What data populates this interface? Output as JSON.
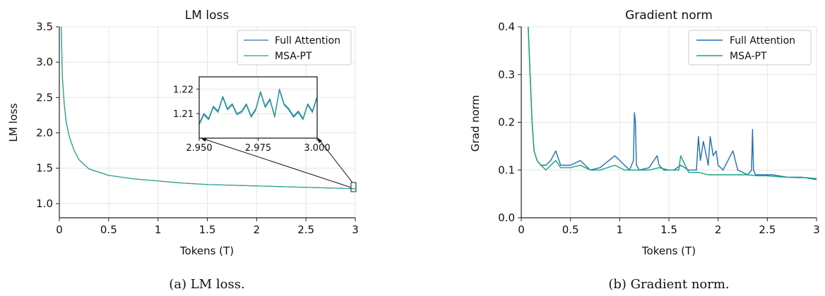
{
  "chart_data": [
    {
      "type": "line",
      "title": "LM loss",
      "xlabel": "Tokens (T)",
      "ylabel": "LM loss",
      "caption": "(a) LM loss.",
      "xlim": [
        0,
        3
      ],
      "ylim": [
        0.8,
        3.5
      ],
      "xticks": [
        0,
        0.5,
        1,
        1.5,
        2,
        2.5,
        3
      ],
      "xtick_labels": [
        "0",
        "0.5",
        "1",
        "1.5",
        "2",
        "2.5",
        "3"
      ],
      "yticks": [
        1.0,
        1.5,
        2.0,
        2.5,
        3.0,
        3.5
      ],
      "ytick_labels": [
        "1.0",
        "1.5",
        "2.0",
        "2.5",
        "3.0",
        "3.5"
      ],
      "grid": true,
      "legend": "top-right",
      "series": [
        {
          "name": "Full Attention",
          "color": "#1f77b4",
          "x": [
            0.02,
            0.03,
            0.05,
            0.07,
            0.1,
            0.15,
            0.2,
            0.3,
            0.5,
            0.75,
            1.0,
            1.25,
            1.5,
            2.0,
            2.5,
            3.0
          ],
          "y": [
            3.5,
            2.8,
            2.4,
            2.15,
            1.95,
            1.75,
            1.62,
            1.49,
            1.4,
            1.35,
            1.32,
            1.29,
            1.27,
            1.25,
            1.23,
            1.21
          ]
        },
        {
          "name": "MSA-PT",
          "color": "#2ca08c",
          "x": [
            0.02,
            0.03,
            0.05,
            0.07,
            0.1,
            0.15,
            0.2,
            0.3,
            0.5,
            0.75,
            1.0,
            1.25,
            1.5,
            2.0,
            2.5,
            3.0
          ],
          "y": [
            3.5,
            2.8,
            2.4,
            2.15,
            1.95,
            1.75,
            1.62,
            1.49,
            1.4,
            1.35,
            1.32,
            1.29,
            1.27,
            1.25,
            1.23,
            1.21
          ]
        }
      ],
      "inset": {
        "xlim": [
          2.95,
          3.0
        ],
        "ylim": [
          1.2,
          1.225
        ],
        "xticks": [
          2.95,
          2.975,
          3.0
        ],
        "xtick_labels": [
          "2.950",
          "2.975",
          "3.000"
        ],
        "yticks": [
          1.21,
          1.22
        ],
        "ytick_labels": [
          "1.21",
          "1.22"
        ],
        "series": [
          {
            "name": "Full Attention",
            "color": "#1f77b4",
            "x": [
              2.95,
              2.952,
              2.954,
              2.956,
              2.958,
              2.96,
              2.962,
              2.964,
              2.966,
              2.968,
              2.97,
              2.972,
              2.974,
              2.976,
              2.978,
              2.98,
              2.982,
              2.984,
              2.986,
              2.988,
              2.99,
              2.992,
              2.994,
              2.996,
              2.998,
              3.0
            ],
            "y": [
              1.206,
              1.21,
              1.208,
              1.213,
              1.211,
              1.217,
              1.212,
              1.214,
              1.21,
              1.211,
              1.214,
              1.209,
              1.212,
              1.219,
              1.213,
              1.216,
              1.209,
              1.22,
              1.214,
              1.212,
              1.209,
              1.211,
              1.208,
              1.214,
              1.211,
              1.217
            ]
          },
          {
            "name": "MSA-PT",
            "color": "#2ca08c",
            "x": [
              2.95,
              2.952,
              2.954,
              2.956,
              2.958,
              2.96,
              2.962,
              2.964,
              2.966,
              2.968,
              2.97,
              2.972,
              2.974,
              2.976,
              2.978,
              2.98,
              2.982,
              2.984,
              2.986,
              2.988,
              2.99,
              2.992,
              2.994,
              2.996,
              2.998,
              3.0
            ],
            "y": [
              1.2055,
              1.2095,
              1.2075,
              1.2125,
              1.2105,
              1.2165,
              1.2115,
              1.2135,
              1.2095,
              1.2105,
              1.2135,
              1.2085,
              1.2115,
              1.2185,
              1.2125,
              1.2155,
              1.2085,
              1.2195,
              1.2135,
              1.2115,
              1.2085,
              1.2105,
              1.2075,
              1.2135,
              1.2105,
              1.2165
            ]
          }
        ]
      }
    },
    {
      "type": "line",
      "title": "Gradient norm",
      "xlabel": "Tokens (T)",
      "ylabel": "Grad norm",
      "caption": "(b) Gradient norm.",
      "xlim": [
        0,
        3
      ],
      "ylim": [
        0,
        0.4
      ],
      "xticks": [
        0,
        0.5,
        1,
        1.5,
        2,
        2.5,
        3
      ],
      "xtick_labels": [
        "0",
        "0.5",
        "1",
        "1.5",
        "2",
        "2.5",
        "3"
      ],
      "yticks": [
        0,
        0.1,
        0.2,
        0.3,
        0.4
      ],
      "ytick_labels": [
        "0.0",
        "0.1",
        "0.2",
        "0.3",
        "0.4"
      ],
      "grid": true,
      "legend": "top-right",
      "series": [
        {
          "name": "Full Attention",
          "color": "#1f6fb4",
          "x": [
            0.07,
            0.09,
            0.11,
            0.13,
            0.16,
            0.2,
            0.25,
            0.3,
            0.35,
            0.4,
            0.5,
            0.6,
            0.7,
            0.8,
            0.95,
            1.05,
            1.1,
            1.14,
            1.15,
            1.16,
            1.17,
            1.2,
            1.3,
            1.38,
            1.4,
            1.45,
            1.55,
            1.62,
            1.7,
            1.78,
            1.8,
            1.82,
            1.85,
            1.9,
            1.92,
            1.95,
            1.98,
            2.0,
            2.05,
            2.1,
            2.15,
            2.2,
            2.3,
            2.34,
            2.35,
            2.36,
            2.38,
            2.45,
            2.55,
            2.7,
            2.85,
            3.0
          ],
          "y": [
            0.4,
            0.3,
            0.2,
            0.14,
            0.12,
            0.11,
            0.11,
            0.12,
            0.14,
            0.11,
            0.11,
            0.12,
            0.1,
            0.105,
            0.13,
            0.11,
            0.1,
            0.12,
            0.22,
            0.2,
            0.11,
            0.1,
            0.105,
            0.13,
            0.11,
            0.1,
            0.1,
            0.11,
            0.1,
            0.1,
            0.17,
            0.12,
            0.16,
            0.11,
            0.17,
            0.13,
            0.14,
            0.11,
            0.1,
            0.12,
            0.14,
            0.1,
            0.09,
            0.1,
            0.185,
            0.1,
            0.09,
            0.09,
            0.09,
            0.085,
            0.085,
            0.08
          ]
        },
        {
          "name": "MSA-PT",
          "color": "#12a579",
          "x": [
            0.07,
            0.09,
            0.11,
            0.13,
            0.16,
            0.2,
            0.25,
            0.3,
            0.35,
            0.4,
            0.5,
            0.6,
            0.7,
            0.8,
            0.95,
            1.05,
            1.1,
            1.2,
            1.3,
            1.4,
            1.5,
            1.6,
            1.62,
            1.7,
            1.8,
            1.9,
            2.0,
            2.1,
            2.2,
            2.3,
            2.4,
            2.5,
            2.6,
            2.7,
            2.8,
            2.9,
            3.0
          ],
          "y": [
            0.4,
            0.3,
            0.2,
            0.14,
            0.12,
            0.11,
            0.1,
            0.11,
            0.12,
            0.105,
            0.105,
            0.11,
            0.1,
            0.1,
            0.11,
            0.1,
            0.1,
            0.1,
            0.1,
            0.105,
            0.1,
            0.1,
            0.13,
            0.095,
            0.095,
            0.09,
            0.09,
            0.09,
            0.09,
            0.09,
            0.088,
            0.088,
            0.086,
            0.085,
            0.084,
            0.084,
            0.082
          ]
        }
      ]
    }
  ]
}
